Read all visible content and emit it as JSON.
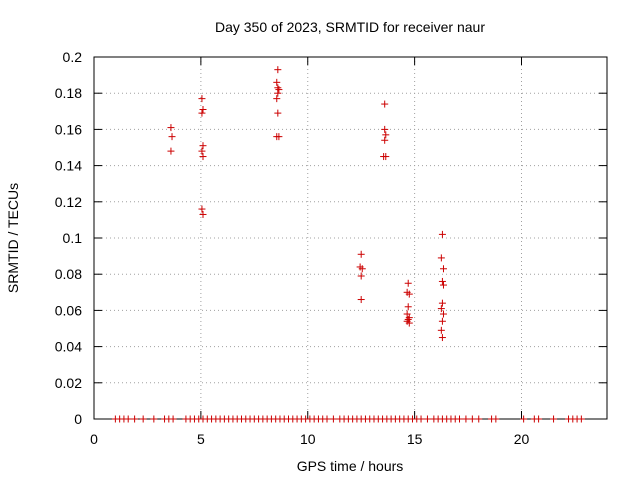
{
  "chart_data": {
    "type": "scatter",
    "title": "Day 350 of 2023, SRMTID for receiver naur",
    "xlabel": "GPS time / hours",
    "ylabel": "SRMTID / TECUs",
    "xlim": [
      0,
      24
    ],
    "ylim": [
      0,
      0.2
    ],
    "grid": true,
    "x_ticks": [
      0,
      5,
      10,
      15,
      20
    ],
    "x_tick_labels": [
      "0",
      "5",
      "10",
      "15",
      "20"
    ],
    "y_ticks": [
      0,
      0.02,
      0.04,
      0.06,
      0.08,
      0.1,
      0.12,
      0.14,
      0.16,
      0.18,
      0.2
    ],
    "y_tick_labels": [
      "0",
      "0.02",
      "0.04",
      "0.06",
      "0.08",
      "0.1",
      "0.12",
      "0.14",
      "0.16",
      "0.18",
      "0.2"
    ],
    "marker": "+",
    "color": "#cc0000",
    "series": [
      {
        "name": "SRMTID",
        "points": [
          [
            3.6,
            0.161
          ],
          [
            3.65,
            0.156
          ],
          [
            3.6,
            0.148
          ],
          [
            5.05,
            0.177
          ],
          [
            5.1,
            0.171
          ],
          [
            5.05,
            0.169
          ],
          [
            5.1,
            0.151
          ],
          [
            5.05,
            0.148
          ],
          [
            5.1,
            0.145
          ],
          [
            5.05,
            0.116
          ],
          [
            5.1,
            0.113
          ],
          [
            8.6,
            0.193
          ],
          [
            8.55,
            0.186
          ],
          [
            8.6,
            0.183
          ],
          [
            8.65,
            0.182
          ],
          [
            8.6,
            0.18
          ],
          [
            8.55,
            0.177
          ],
          [
            8.6,
            0.169
          ],
          [
            8.55,
            0.156
          ],
          [
            8.65,
            0.156
          ],
          [
            12.5,
            0.091
          ],
          [
            12.45,
            0.084
          ],
          [
            12.55,
            0.083
          ],
          [
            12.5,
            0.079
          ],
          [
            12.5,
            0.066
          ],
          [
            13.6,
            0.174
          ],
          [
            13.6,
            0.16
          ],
          [
            13.65,
            0.157
          ],
          [
            13.6,
            0.154
          ],
          [
            13.55,
            0.145
          ],
          [
            13.65,
            0.145
          ],
          [
            14.7,
            0.075
          ],
          [
            14.65,
            0.07
          ],
          [
            14.75,
            0.069
          ],
          [
            14.7,
            0.062
          ],
          [
            14.65,
            0.058
          ],
          [
            14.75,
            0.056
          ],
          [
            14.7,
            0.055
          ],
          [
            14.65,
            0.054
          ],
          [
            14.75,
            0.053
          ],
          [
            16.3,
            0.102
          ],
          [
            16.25,
            0.089
          ],
          [
            16.35,
            0.083
          ],
          [
            16.3,
            0.076
          ],
          [
            16.35,
            0.074
          ],
          [
            16.3,
            0.064
          ],
          [
            16.25,
            0.061
          ],
          [
            16.35,
            0.058
          ],
          [
            16.3,
            0.054
          ],
          [
            16.25,
            0.049
          ],
          [
            16.3,
            0.045
          ],
          [
            1.0,
            0
          ],
          [
            1.2,
            0
          ],
          [
            1.4,
            0
          ],
          [
            1.6,
            0
          ],
          [
            1.9,
            0
          ],
          [
            2.3,
            0
          ],
          [
            2.8,
            0
          ],
          [
            3.3,
            0
          ],
          [
            3.5,
            0
          ],
          [
            3.7,
            0
          ],
          [
            4.3,
            0
          ],
          [
            4.5,
            0
          ],
          [
            4.7,
            0
          ],
          [
            4.9,
            0
          ],
          [
            5.1,
            0
          ],
          [
            5.3,
            0
          ],
          [
            5.5,
            0
          ],
          [
            5.7,
            0
          ],
          [
            5.9,
            0
          ],
          [
            6.1,
            0
          ],
          [
            6.3,
            0
          ],
          [
            6.5,
            0
          ],
          [
            6.7,
            0
          ],
          [
            6.9,
            0
          ],
          [
            7.1,
            0
          ],
          [
            7.3,
            0
          ],
          [
            7.5,
            0
          ],
          [
            7.7,
            0
          ],
          [
            7.9,
            0
          ],
          [
            8.1,
            0
          ],
          [
            8.3,
            0
          ],
          [
            8.5,
            0
          ],
          [
            8.7,
            0
          ],
          [
            8.9,
            0
          ],
          [
            9.1,
            0
          ],
          [
            9.3,
            0
          ],
          [
            9.5,
            0
          ],
          [
            9.7,
            0
          ],
          [
            9.9,
            0
          ],
          [
            10.1,
            0
          ],
          [
            10.3,
            0
          ],
          [
            10.5,
            0
          ],
          [
            10.7,
            0
          ],
          [
            10.9,
            0
          ],
          [
            11.2,
            0
          ],
          [
            11.5,
            0
          ],
          [
            11.7,
            0
          ],
          [
            11.9,
            0
          ],
          [
            12.1,
            0
          ],
          [
            12.3,
            0
          ],
          [
            12.5,
            0
          ],
          [
            12.7,
            0
          ],
          [
            12.9,
            0
          ],
          [
            13.1,
            0
          ],
          [
            13.3,
            0
          ],
          [
            13.5,
            0
          ],
          [
            13.7,
            0
          ],
          [
            13.9,
            0
          ],
          [
            14.1,
            0
          ],
          [
            14.3,
            0
          ],
          [
            14.5,
            0
          ],
          [
            14.7,
            0
          ],
          [
            14.9,
            0
          ],
          [
            15.1,
            0
          ],
          [
            15.3,
            0
          ],
          [
            15.6,
            0
          ],
          [
            15.9,
            0
          ],
          [
            16.1,
            0
          ],
          [
            16.3,
            0
          ],
          [
            16.5,
            0
          ],
          [
            16.7,
            0
          ],
          [
            16.9,
            0
          ],
          [
            17.1,
            0
          ],
          [
            17.4,
            0
          ],
          [
            17.7,
            0
          ],
          [
            18.0,
            0
          ],
          [
            18.6,
            0
          ],
          [
            18.8,
            0
          ],
          [
            20.1,
            0
          ],
          [
            20.6,
            0
          ],
          [
            20.8,
            0
          ],
          [
            21.5,
            0
          ],
          [
            22.2,
            0
          ],
          [
            22.4,
            0
          ],
          [
            22.6,
            0
          ],
          [
            22.8,
            0
          ]
        ]
      }
    ]
  }
}
